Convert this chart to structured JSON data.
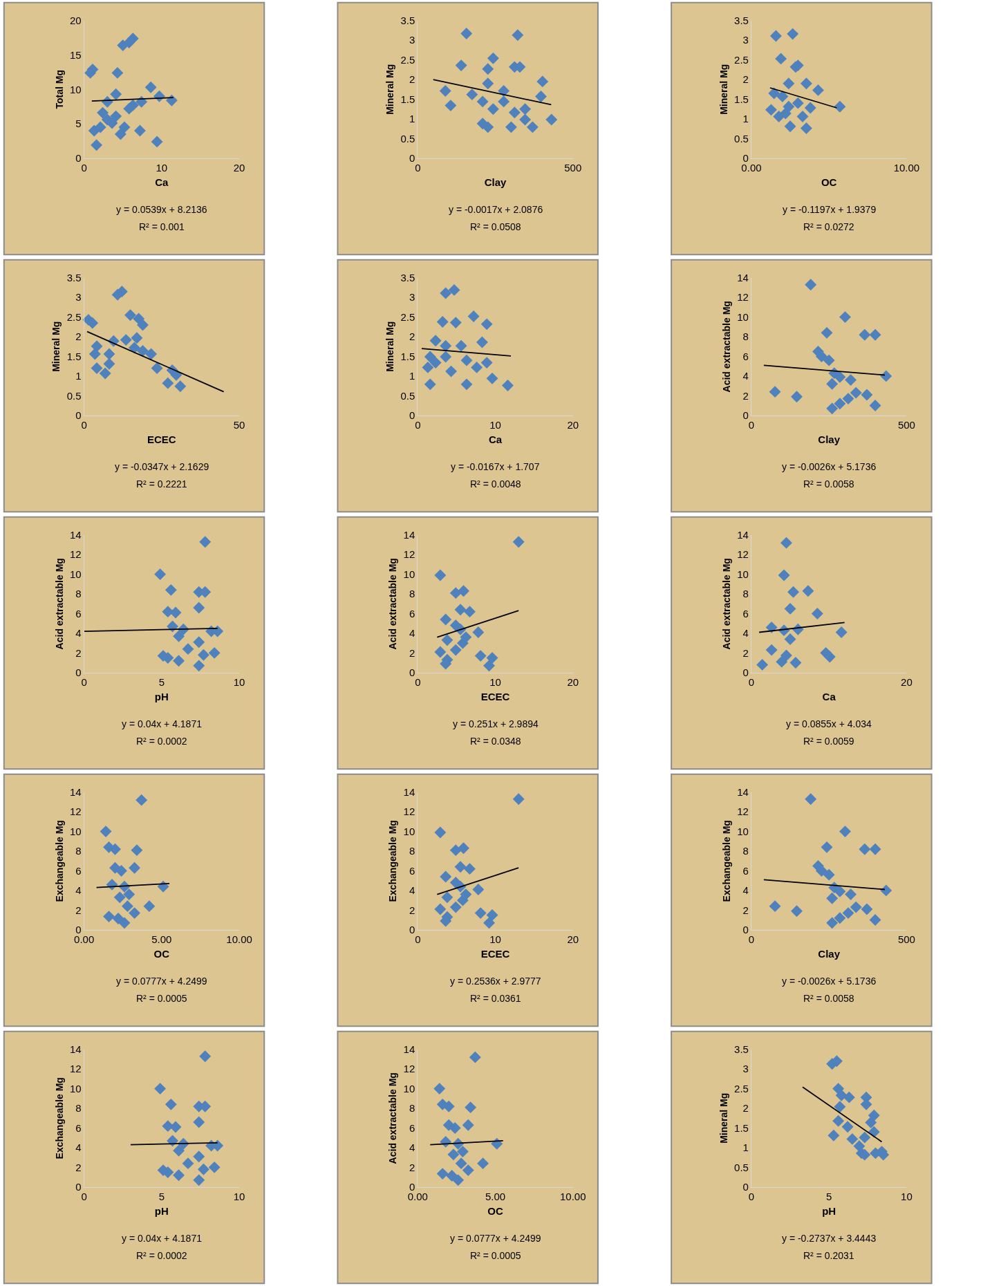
{
  "chart_data": [
    {
      "type": "scatter",
      "xlabel": "Ca",
      "ylabel": "Total Mg",
      "xlim": [
        0,
        20
      ],
      "ylim": [
        0,
        20
      ],
      "xticks": [
        0,
        10,
        20
      ],
      "yticks": [
        0,
        5,
        10,
        15,
        20
      ],
      "marker": "diamond",
      "grid": false,
      "annotations": [
        "y = 0.0539x + 8.2136",
        "R² = 0.001"
      ],
      "series": [
        {
          "color": "#4f81bd",
          "x": [
            1.1,
            0.8,
            4.3,
            5,
            5.8,
            6.3,
            1.6,
            1.3,
            2.1,
            3,
            3.6,
            4.1,
            4.7,
            5.2,
            5.8,
            6.3,
            7.2,
            7.4,
            8.6,
            9.7,
            9.4,
            11.3,
            3,
            4.1,
            2.4
          ],
          "values": [
            12.9,
            12.4,
            12.4,
            16.4,
            16.8,
            17.4,
            1.9,
            4,
            4.5,
            5.6,
            5.1,
            6.1,
            3.5,
            4.5,
            7.2,
            7.7,
            4,
            8.2,
            10.3,
            9,
            2.4,
            8.4,
            8.2,
            9.3,
            6.6
          ]
        },
        {
          "type": "line",
          "color": "#000000",
          "x": [
            1,
            11.5
          ],
          "values": [
            8.3,
            8.8
          ],
          "marker": "none"
        }
      ]
    },
    {
      "type": "scatter",
      "xlabel": "Clay",
      "ylabel": "Mineral Mg",
      "xlim": [
        0,
        500
      ],
      "ylim": [
        0,
        3.5
      ],
      "xticks": [
        0,
        500
      ],
      "yticks": [
        0,
        0.5,
        1,
        1.5,
        2,
        2.5,
        3,
        3.5
      ],
      "marker": "diamond",
      "grid": false,
      "annotations": [
        "y = -0.0017x + 2.0876",
        "R² = 0.0508"
      ],
      "series": [
        {
          "color": "#4f81bd",
          "x": [
            157,
            322,
            140,
            243,
            312,
            329,
            226,
            402,
            226,
            89,
            175,
            277,
            209,
            397,
            106,
            243,
            312,
            346,
            209,
            301,
            370,
            431,
            346,
            226,
            277
          ],
          "values": [
            3.17,
            3.13,
            2.36,
            2.54,
            2.32,
            2.32,
            2.27,
            1.95,
            1.9,
            1.71,
            1.62,
            1.71,
            1.44,
            1.57,
            1.34,
            1.25,
            1.16,
            1.25,
            0.88,
            0.79,
            0.79,
            0.98,
            0.98,
            0.79,
            1.44
          ]
        },
        {
          "type": "line",
          "color": "#000000",
          "x": [
            50,
            430
          ],
          "values": [
            2.0,
            1.36
          ],
          "marker": "none"
        }
      ]
    },
    {
      "type": "scatter",
      "xlabel": "OC",
      "ylabel": "Mineral Mg",
      "xlim": [
        0,
        10
      ],
      "ylim": [
        0,
        3.5
      ],
      "xticks": [
        {
          "value": 0,
          "label": "0.00"
        },
        {
          "value": 10,
          "label": "10.00"
        }
      ],
      "yticks": [
        0,
        0.5,
        1,
        1.5,
        2,
        2.5,
        3,
        3.5
      ],
      "marker": "diamond",
      "grid": false,
      "annotations": [
        "y = -0.1197x + 1.9379",
        "R² = 0.0272"
      ],
      "series": [
        {
          "color": "#4f81bd",
          "x": [
            1.58,
            2.66,
            1.9,
            2.85,
            3.0,
            2.4,
            3.54,
            1.46,
            2.0,
            4.3,
            3.0,
            1.27,
            2.2,
            3.8,
            2.5,
            3.54,
            1.77,
            3.3,
            2.4,
            5.7
          ],
          "values": [
            3.11,
            3.16,
            2.53,
            2.32,
            2.36,
            1.9,
            1.9,
            1.65,
            1.57,
            1.73,
            1.4,
            1.23,
            1.14,
            1.28,
            0.81,
            0.76,
            1.06,
            1.06,
            1.31,
            1.31
          ]
        },
        {
          "type": "line",
          "color": "#000000",
          "x": [
            1.2,
            5.5
          ],
          "values": [
            1.79,
            1.28
          ],
          "marker": "none"
        }
      ]
    },
    {
      "type": "scatter",
      "xlabel": "ECEC",
      "ylabel": "Mineral Mg",
      "xlim": [
        0,
        50
      ],
      "ylim": [
        0,
        3.5
      ],
      "xticks": [
        0,
        50
      ],
      "yticks": [
        0,
        0.5,
        1,
        1.5,
        2,
        2.5,
        3,
        3.5
      ],
      "marker": "diamond",
      "grid": false,
      "annotations": [
        "y = -0.0347x + 2.1629",
        "R² = 0.2221"
      ],
      "series": [
        {
          "color": "#4f81bd",
          "x": [
            1.4,
            2.7,
            12.2,
            10.8,
            14.9,
            17.6,
            18.9,
            4.1,
            9.5,
            13.5,
            17,
            3.5,
            8.1,
            16.2,
            18.9,
            21.6,
            4.1,
            8.1,
            6.8,
            23.5,
            28.4,
            29.7,
            27,
            31
          ],
          "values": [
            2.43,
            2.35,
            3.15,
            3.07,
            2.55,
            2.46,
            2.3,
            1.76,
            1.89,
            1.92,
            1.97,
            1.56,
            1.56,
            1.72,
            1.64,
            1.56,
            1.2,
            1.31,
            1.07,
            1.2,
            1.15,
            1.03,
            0.82,
            0.74
          ]
        },
        {
          "type": "line",
          "color": "#000000",
          "x": [
            1,
            45
          ],
          "values": [
            2.13,
            0.6
          ],
          "marker": "none"
        }
      ]
    },
    {
      "type": "scatter",
      "xlabel": "Ca",
      "ylabel": "Mineral Mg",
      "xlim": [
        0,
        20
      ],
      "ylim": [
        0,
        3.5
      ],
      "xticks": [
        0,
        10,
        20
      ],
      "yticks": [
        0,
        0.5,
        1,
        1.5,
        2,
        2.5,
        3,
        3.5
      ],
      "marker": "diamond",
      "grid": false,
      "annotations": [
        "y = -0.0167x + 1.707",
        "R² = 0.0048"
      ],
      "series": [
        {
          "color": "#4f81bd",
          "x": [
            3.6,
            4.7,
            3.2,
            4.9,
            7.2,
            8.9,
            2.3,
            3.6,
            5.6,
            8.3,
            1.6,
            3.6,
            6.3,
            1.3,
            2.3,
            8.9,
            4.3,
            9.6,
            1.6,
            6.3,
            11.6,
            7.6
          ],
          "values": [
            3.11,
            3.19,
            2.38,
            2.36,
            2.52,
            2.32,
            1.9,
            1.77,
            1.77,
            1.86,
            1.49,
            1.49,
            1.4,
            1.22,
            1.34,
            1.34,
            1.12,
            0.94,
            0.79,
            0.79,
            0.76,
            1.22
          ]
        },
        {
          "type": "line",
          "color": "#000000",
          "x": [
            0.5,
            12
          ],
          "values": [
            1.7,
            1.51
          ],
          "marker": "none"
        }
      ]
    },
    {
      "type": "scatter",
      "xlabel": "Clay",
      "ylabel": "Acid extractable Mg",
      "xlim": [
        0,
        500
      ],
      "ylim": [
        0,
        14
      ],
      "xticks": [
        0,
        500
      ],
      "yticks": [
        0,
        2,
        4,
        6,
        8,
        10,
        12,
        14
      ],
      "marker": "diamond",
      "grid": false,
      "annotations": [
        "y = -0.0026x + 5.1736",
        "R² = 0.0058"
      ],
      "series": [
        {
          "color": "#4f81bd",
          "x": [
            191,
            302,
            243,
            365,
            399,
            215,
            226,
            250,
            267,
            285,
            320,
            434,
            76,
            146,
            260,
            337,
            372,
            285,
            260,
            399,
            312
          ],
          "values": [
            13.3,
            10,
            8.4,
            8.2,
            8.2,
            6.5,
            6,
            5.6,
            4.3,
            3.9,
            3.6,
            4,
            2.4,
            1.9,
            3.2,
            2.3,
            2.1,
            1.2,
            0.7,
            1.0,
            1.7
          ]
        },
        {
          "type": "line",
          "color": "#000000",
          "x": [
            40,
            430
          ],
          "values": [
            5.1,
            4.1
          ],
          "marker": "none"
        }
      ]
    },
    {
      "type": "scatter",
      "xlabel": "pH",
      "ylabel": "Acid extractable Mg",
      "xlim": [
        0,
        10
      ],
      "ylim": [
        0,
        14
      ],
      "xticks": [
        0,
        5,
        10
      ],
      "yticks": [
        0,
        2,
        4,
        6,
        8,
        10,
        12,
        14
      ],
      "marker": "diamond",
      "grid": false,
      "annotations": [
        "y = 0.04x + 4.1871",
        "R² = 0.0002"
      ],
      "series": [
        {
          "color": "#4f81bd",
          "x": [
            7.8,
            4.9,
            5.6,
            7.4,
            7.8,
            5.4,
            5.9,
            7.4,
            5.7,
            6.4,
            8.2,
            8.6,
            6.1,
            7.4,
            5.4,
            6.1,
            7.7,
            8.4,
            7.4,
            6.7,
            5.1
          ],
          "values": [
            13.3,
            10,
            8.4,
            8.2,
            8.2,
            6.2,
            6.1,
            6.6,
            4.7,
            4.4,
            4.2,
            4.2,
            3.7,
            3.1,
            1.5,
            1.2,
            1.8,
            2,
            0.7,
            2.4,
            1.7
          ]
        },
        {
          "type": "line",
          "color": "#000000",
          "x": [
            0,
            8.6
          ],
          "values": [
            4.2,
            4.5
          ],
          "marker": "none"
        }
      ]
    },
    {
      "type": "scatter",
      "xlabel": "ECEC",
      "ylabel": "Acid extractable Mg",
      "xlim": [
        0,
        20
      ],
      "ylim": [
        0,
        14
      ],
      "xticks": [
        0,
        10,
        20
      ],
      "yticks": [
        0,
        2,
        4,
        6,
        8,
        10,
        12,
        14
      ],
      "marker": "diamond",
      "grid": false,
      "annotations": [
        "y = 0.251x + 2.9894",
        "R² = 0.0348"
      ],
      "series": [
        {
          "color": "#4f81bd",
          "x": [
            13,
            2.9,
            4.9,
            5.9,
            5.5,
            6.7,
            3.6,
            4.9,
            5.5,
            7.8,
            3.8,
            5.8,
            2.9,
            4.9,
            3.8,
            3.6,
            8.1,
            9.6,
            9.2,
            6.2
          ],
          "values": [
            13.3,
            9.9,
            8.1,
            8.3,
            6.4,
            6.2,
            5.4,
            4.8,
            4.4,
            4.1,
            3.3,
            3,
            2.1,
            2.3,
            1.3,
            0.9,
            1.7,
            1.5,
            0.7,
            3.6
          ]
        },
        {
          "type": "line",
          "color": "#000000",
          "x": [
            2.5,
            13
          ],
          "values": [
            3.6,
            6.3
          ],
          "marker": "none"
        }
      ]
    },
    {
      "type": "scatter",
      "xlabel": "Ca",
      "ylabel": "Acid extractable Mg",
      "xlim": [
        0,
        20
      ],
      "ylim": [
        0,
        14
      ],
      "xticks": [
        0,
        20
      ],
      "yticks": [
        0,
        2,
        4,
        6,
        8,
        10,
        12,
        14
      ],
      "marker": "diamond",
      "grid": false,
      "annotations": [
        "y = 0.0855x + 4.034",
        "R² = 0.0059"
      ],
      "series": [
        {
          "color": "#4f81bd",
          "x": [
            4.5,
            4.2,
            5.4,
            7.3,
            5,
            8.5,
            2.6,
            4.2,
            6,
            11.6,
            5,
            2.6,
            9.6,
            10.1,
            3.9,
            5.7,
            1.4,
            4.5
          ],
          "values": [
            13.2,
            9.9,
            8.2,
            8.3,
            6.5,
            6,
            4.6,
            4.3,
            4.4,
            4.1,
            3.4,
            2.3,
            2,
            1.6,
            1.1,
            1.0,
            0.8,
            1.75
          ]
        },
        {
          "type": "line",
          "color": "#000000",
          "x": [
            1,
            12
          ],
          "values": [
            4.1,
            5.1
          ],
          "marker": "none"
        }
      ]
    },
    {
      "type": "scatter",
      "xlabel": "OC",
      "ylabel": "Exchangeable Mg",
      "xlim": [
        0,
        10
      ],
      "ylim": [
        0,
        14
      ],
      "xticks": [
        {
          "value": 0,
          "label": "0.00"
        },
        {
          "value": 5,
          "label": "5.00"
        },
        {
          "value": 10,
          "label": "10.00"
        }
      ],
      "yticks": [
        0,
        2,
        4,
        6,
        8,
        10,
        12,
        14
      ],
      "marker": "diamond",
      "grid": false,
      "annotations": [
        "y = 0.0777x + 4.2499",
        "R² = 0.0005"
      ],
      "series": [
        {
          "color": "#4f81bd",
          "x": [
            3.7,
            1.4,
            1.6,
            2,
            3.4,
            2,
            2.4,
            3.25,
            1.8,
            2.6,
            5.1,
            2.3,
            2.9,
            4.2,
            1.6,
            2.2,
            2.6,
            3.25,
            2.8
          ],
          "values": [
            13.2,
            10,
            8.4,
            8.2,
            8.1,
            6.3,
            6,
            6.3,
            4.6,
            4.4,
            4.4,
            3.3,
            3.6,
            2.4,
            1.35,
            1.15,
            0.7,
            1.7,
            2.4
          ]
        },
        {
          "type": "line",
          "color": "#000000",
          "x": [
            0.8,
            5.5
          ],
          "values": [
            4.3,
            4.7
          ],
          "marker": "none"
        }
      ]
    },
    {
      "type": "scatter",
      "xlabel": "ECEC",
      "ylabel": "Exchangeable Mg",
      "xlim": [
        0,
        20
      ],
      "ylim": [
        0,
        14
      ],
      "xticks": [
        0,
        10,
        20
      ],
      "yticks": [
        0,
        2,
        4,
        6,
        8,
        10,
        12,
        14
      ],
      "marker": "diamond",
      "grid": false,
      "annotations": [
        "y = 0.2536x + 2.9777",
        "R² = 0.0361"
      ],
      "series": [
        {
          "color": "#4f81bd",
          "x": [
            13,
            2.9,
            4.9,
            5.9,
            5.5,
            6.7,
            3.6,
            4.9,
            5.5,
            7.8,
            3.8,
            5.8,
            2.9,
            4.9,
            3.8,
            3.6,
            8.1,
            9.6,
            9.2,
            6.2
          ],
          "values": [
            13.3,
            9.9,
            8.1,
            8.3,
            6.4,
            6.2,
            5.4,
            4.8,
            4.4,
            4.1,
            3.3,
            3,
            2.1,
            2.3,
            1.3,
            0.9,
            1.7,
            1.5,
            0.7,
            3.6
          ]
        },
        {
          "type": "line",
          "color": "#000000",
          "x": [
            2.5,
            13
          ],
          "values": [
            3.6,
            6.3
          ],
          "marker": "none"
        }
      ]
    },
    {
      "type": "scatter",
      "xlabel": "Clay",
      "ylabel": "Exchangeable Mg",
      "xlim": [
        0,
        500
      ],
      "ylim": [
        0,
        14
      ],
      "xticks": [
        0,
        500
      ],
      "yticks": [
        0,
        2,
        4,
        6,
        8,
        10,
        12,
        14
      ],
      "marker": "diamond",
      "grid": false,
      "annotations": [
        "y = -0.0026x + 5.1736",
        "R² = 0.0058"
      ],
      "series": [
        {
          "color": "#4f81bd",
          "x": [
            191,
            302,
            243,
            365,
            399,
            215,
            226,
            250,
            267,
            285,
            320,
            434,
            76,
            146,
            260,
            337,
            372,
            285,
            260,
            399,
            312
          ],
          "values": [
            13.3,
            10,
            8.4,
            8.2,
            8.2,
            6.5,
            6,
            5.6,
            4.3,
            3.9,
            3.6,
            4,
            2.4,
            1.9,
            3.2,
            2.3,
            2.1,
            1.2,
            0.7,
            1.0,
            1.7
          ]
        },
        {
          "type": "line",
          "color": "#000000",
          "x": [
            40,
            430
          ],
          "values": [
            5.1,
            4.1
          ],
          "marker": "none"
        }
      ]
    },
    {
      "type": "scatter",
      "xlabel": "pH",
      "ylabel": "Exchangeable Mg",
      "xlim": [
        0,
        10
      ],
      "ylim": [
        0,
        14
      ],
      "xticks": [
        0,
        5,
        10
      ],
      "yticks": [
        0,
        2,
        4,
        6,
        8,
        10,
        12,
        14
      ],
      "marker": "diamond",
      "grid": false,
      "annotations": [
        "y = 0.04x + 4.1871",
        "R² = 0.0002"
      ],
      "series": [
        {
          "color": "#4f81bd",
          "x": [
            7.8,
            4.9,
            5.6,
            7.4,
            7.8,
            5.4,
            5.9,
            7.4,
            5.7,
            6.4,
            8.2,
            8.6,
            6.1,
            7.4,
            5.4,
            6.1,
            7.7,
            8.4,
            7.4,
            6.7,
            5.1
          ],
          "values": [
            13.3,
            10,
            8.4,
            8.2,
            8.2,
            6.2,
            6.1,
            6.6,
            4.7,
            4.4,
            4.2,
            4.2,
            3.7,
            3.1,
            1.5,
            1.2,
            1.8,
            2,
            0.7,
            2.4,
            1.7
          ]
        },
        {
          "type": "line",
          "color": "#000000",
          "x": [
            3,
            8.6
          ],
          "values": [
            4.3,
            4.5
          ],
          "marker": "none"
        }
      ]
    },
    {
      "type": "scatter",
      "xlabel": "OC",
      "ylabel": "Acid extractable Mg",
      "xlim": [
        0,
        10
      ],
      "ylim": [
        0,
        14
      ],
      "xticks": [
        {
          "value": 0,
          "label": "0.00"
        },
        {
          "value": 5,
          "label": "5.00"
        },
        {
          "value": 10,
          "label": "10.00"
        }
      ],
      "yticks": [
        0,
        2,
        4,
        6,
        8,
        10,
        12,
        14
      ],
      "marker": "diamond",
      "grid": false,
      "annotations": [
        "y = 0.0777x + 4.2499",
        "R² = 0.0005"
      ],
      "series": [
        {
          "color": "#4f81bd",
          "x": [
            3.7,
            1.4,
            1.6,
            2,
            3.4,
            2,
            2.4,
            3.25,
            1.8,
            2.6,
            5.1,
            2.3,
            2.9,
            4.2,
            1.6,
            2.2,
            2.6,
            3.25,
            2.8
          ],
          "values": [
            13.2,
            10,
            8.4,
            8.2,
            8.1,
            6.3,
            6,
            6.3,
            4.6,
            4.4,
            4.4,
            3.3,
            3.6,
            2.4,
            1.35,
            1.15,
            0.7,
            1.7,
            2.4
          ]
        },
        {
          "type": "line",
          "color": "#000000",
          "x": [
            0.8,
            5.5
          ],
          "values": [
            4.3,
            4.7
          ],
          "marker": "none"
        }
      ]
    },
    {
      "type": "scatter",
      "xlabel": "pH",
      "ylabel": "Mineral Mg",
      "xlim": [
        0,
        10
      ],
      "ylim": [
        0,
        3.5
      ],
      "xticks": [
        0,
        5,
        10
      ],
      "yticks": [
        0,
        0.5,
        1,
        1.5,
        2,
        2.5,
        3,
        3.5
      ],
      "marker": "diamond",
      "grid": false,
      "annotations": [
        "y = -0.2737x + 3.4443",
        "R² = 0.2031"
      ],
      "series": [
        {
          "color": "#4f81bd",
          "x": [
            5.2,
            5.5,
            5.6,
            5.8,
            6.3,
            7.4,
            5.7,
            7.4,
            5.6,
            6.2,
            7.9,
            7.7,
            7.9,
            5.3,
            6.5,
            7.3,
            6.95,
            7.1,
            7.3,
            8,
            8.4,
            8.5
          ],
          "values": [
            3.13,
            3.2,
            2.5,
            2.33,
            2.28,
            2.28,
            2.04,
            2.1,
            1.68,
            1.53,
            1.82,
            1.64,
            1.4,
            1.31,
            1.22,
            1.26,
            1.04,
            0.86,
            0.82,
            0.86,
            0.9,
            0.82
          ]
        },
        {
          "type": "line",
          "color": "#000000",
          "x": [
            3.3,
            8.4
          ],
          "values": [
            2.54,
            1.15
          ],
          "marker": "none"
        }
      ]
    }
  ]
}
